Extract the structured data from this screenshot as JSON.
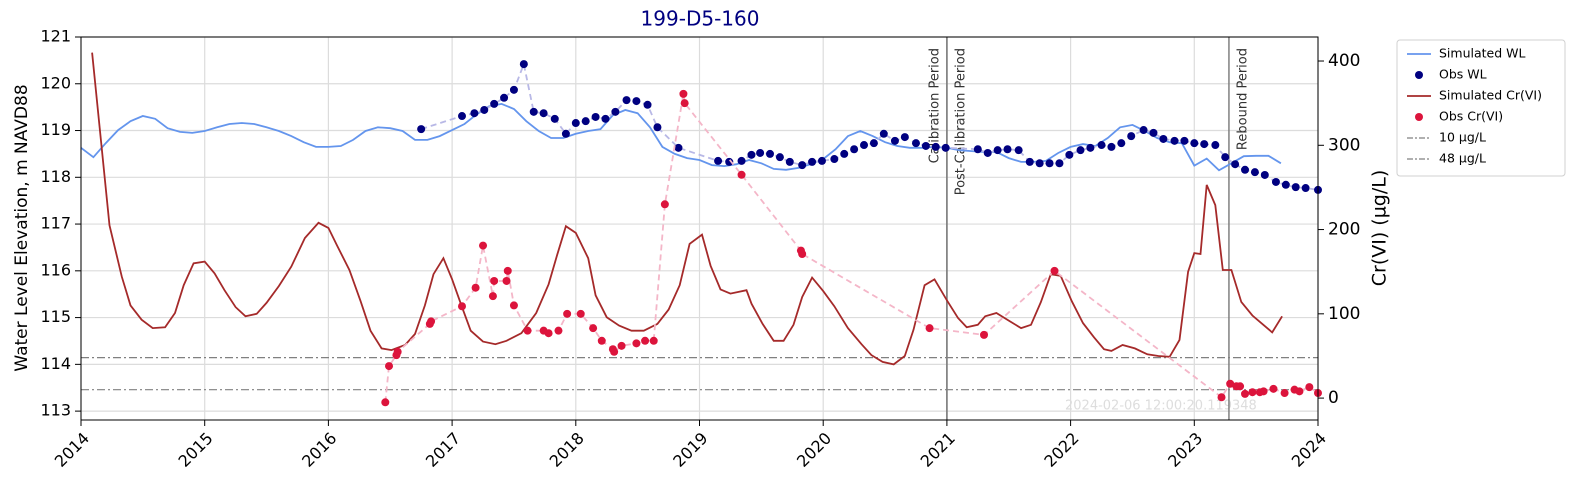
{
  "chart_data": {
    "type": "line",
    "title": "199-D5-160",
    "ylabel": "Water Level Elevation, m NAVD88",
    "y2label": "Cr(VI) (µg/L)",
    "watermark": "2024-02-06 12:00:20.119348",
    "xlim": [
      2014,
      2024
    ],
    "xticks": [
      2014,
      2015,
      2016,
      2017,
      2018,
      2019,
      2020,
      2021,
      2022,
      2023,
      2024
    ],
    "ylim": [
      112.81,
      121
    ],
    "yticks": [
      113,
      114,
      115,
      116,
      117,
      118,
      119,
      120,
      121
    ],
    "y2lim": [
      -26,
      428.5
    ],
    "y2ticks": [
      0,
      100,
      200,
      300,
      400
    ],
    "grid": true,
    "legend": "outside right",
    "series": [
      {
        "name": "Simulated WL",
        "kind": "line",
        "axis": "y",
        "color": "#6495ed",
        "x": [
          2014.0,
          2014.1,
          2014.2,
          2014.3,
          2014.4,
          2014.5,
          2014.6,
          2014.7,
          2014.8,
          2014.9,
          2015.0,
          2015.1,
          2015.2,
          2015.3,
          2015.4,
          2015.5,
          2015.6,
          2015.7,
          2015.8,
          2015.9,
          2016.0,
          2016.1,
          2016.2,
          2016.3,
          2016.4,
          2016.5,
          2016.6,
          2016.7,
          2016.8,
          2016.9,
          2017.0,
          2017.1,
          2017.2,
          2017.3,
          2017.4,
          2017.5,
          2017.6,
          2017.7,
          2017.8,
          2017.9,
          2018.0,
          2018.1,
          2018.2,
          2018.3,
          2018.4,
          2018.5,
          2018.6,
          2018.7,
          2018.8,
          2018.9,
          2019.0,
          2019.1,
          2019.2,
          2019.3,
          2019.4,
          2019.5,
          2019.6,
          2019.7,
          2019.8,
          2019.9,
          2020.0,
          2020.1,
          2020.2,
          2020.3,
          2020.4,
          2020.5,
          2020.6,
          2020.7,
          2020.8,
          2020.9,
          2021.0,
          2021.1,
          2021.2,
          2021.3,
          2021.4,
          2021.5,
          2021.6,
          2021.7,
          2021.8,
          2021.9,
          2022.0,
          2022.1,
          2022.2,
          2022.3,
          2022.4,
          2022.5,
          2022.6,
          2022.7,
          2022.8,
          2022.9,
          2023.0,
          2023.1,
          2023.2,
          2023.3,
          2023.4,
          2023.5,
          2023.6,
          2023.7
        ],
        "values": [
          118.63,
          118.43,
          118.73,
          119.01,
          119.2,
          119.31,
          119.25,
          119.05,
          118.97,
          118.95,
          118.99,
          119.07,
          119.14,
          119.16,
          119.14,
          119.07,
          118.99,
          118.88,
          118.75,
          118.65,
          118.65,
          118.67,
          118.8,
          118.99,
          119.07,
          119.05,
          118.99,
          118.8,
          118.8,
          118.88,
          119.01,
          119.14,
          119.35,
          119.52,
          119.57,
          119.46,
          119.2,
          118.99,
          118.84,
          118.84,
          118.93,
          118.99,
          119.03,
          119.33,
          119.44,
          119.37,
          119.07,
          118.65,
          118.5,
          118.41,
          118.37,
          118.26,
          118.24,
          118.28,
          118.37,
          118.3,
          118.18,
          118.16,
          118.2,
          118.28,
          118.39,
          118.6,
          118.88,
          118.99,
          118.88,
          118.75,
          118.67,
          118.63,
          118.63,
          118.65,
          118.63,
          118.58,
          118.56,
          118.54,
          118.54,
          118.41,
          118.33,
          118.33,
          118.35,
          118.52,
          118.65,
          118.71,
          118.67,
          118.84,
          119.07,
          119.12,
          118.99,
          118.84,
          118.75,
          118.73,
          118.25,
          118.4,
          118.15,
          118.3,
          118.45,
          118.46,
          118.46,
          118.3
        ]
      },
      {
        "name": "Obs WL",
        "kind": "scatter",
        "axis": "y",
        "color": "#000080",
        "connector_color": "#b8b8e6",
        "x": [
          2016.75,
          2017.08,
          2017.18,
          2017.26,
          2017.34,
          2017.42,
          2017.5,
          2017.58,
          2017.66,
          2017.74,
          2017.83,
          2017.92,
          2018.0,
          2018.08,
          2018.16,
          2018.24,
          2018.32,
          2018.41,
          2018.49,
          2018.58,
          2018.66,
          2018.83,
          2019.15,
          2019.24,
          2019.34,
          2019.42,
          2019.49,
          2019.57,
          2019.65,
          2019.73,
          2019.83,
          2019.91,
          2019.99,
          2020.09,
          2020.17,
          2020.25,
          2020.33,
          2020.41,
          2020.49,
          2020.58,
          2020.66,
          2020.75,
          2020.83,
          2020.91,
          2020.99,
          2021.25,
          2021.33,
          2021.41,
          2021.49,
          2021.58,
          2021.67,
          2021.75,
          2021.83,
          2021.91,
          2021.99,
          2022.08,
          2022.16,
          2022.25,
          2022.33,
          2022.41,
          2022.49,
          2022.59,
          2022.67,
          2022.75,
          2022.84,
          2022.92,
          2023.0,
          2023.08,
          2023.17,
          2023.25,
          2023.33,
          2023.41,
          2023.49,
          2023.57,
          2023.66,
          2023.74,
          2023.82,
          2023.9,
          2024.0
        ],
        "values": [
          119.03,
          119.31,
          119.37,
          119.44,
          119.57,
          119.7,
          119.87,
          120.42,
          119.4,
          119.37,
          119.25,
          118.93,
          119.16,
          119.2,
          119.29,
          119.25,
          119.4,
          119.65,
          119.63,
          119.55,
          119.07,
          118.63,
          118.35,
          118.33,
          118.35,
          118.48,
          118.52,
          118.5,
          118.43,
          118.33,
          118.26,
          118.33,
          118.35,
          118.39,
          118.5,
          118.6,
          118.69,
          118.73,
          118.93,
          118.78,
          118.86,
          118.73,
          118.67,
          118.65,
          118.63,
          118.6,
          118.52,
          118.58,
          118.6,
          118.58,
          118.33,
          118.3,
          118.3,
          118.3,
          118.48,
          118.58,
          118.63,
          118.69,
          118.65,
          118.73,
          118.88,
          119.01,
          118.95,
          118.82,
          118.78,
          118.78,
          118.73,
          118.71,
          118.69,
          118.43,
          118.28,
          118.16,
          118.11,
          118.05,
          117.9,
          117.84,
          117.79,
          117.77,
          117.73
        ]
      },
      {
        "name": "Simulated Cr(VI)",
        "kind": "line",
        "axis": "y2",
        "color": "#a52a2a",
        "x": [
          2014.09,
          2014.23,
          2014.33,
          2014.4,
          2014.49,
          2014.58,
          2014.68,
          2014.76,
          2014.83,
          2014.91,
          2015.0,
          2015.08,
          2015.16,
          2015.25,
          2015.33,
          2015.42,
          2015.5,
          2015.6,
          2015.7,
          2015.81,
          2015.92,
          2016.0,
          2016.07,
          2016.17,
          2016.26,
          2016.34,
          2016.43,
          2016.51,
          2016.62,
          2016.7,
          2016.78,
          2016.85,
          2016.93,
          2017.0,
          2017.08,
          2017.15,
          2017.25,
          2017.35,
          2017.44,
          2017.56,
          2017.68,
          2017.78,
          2017.85,
          2017.92,
          2018.0,
          2018.1,
          2018.16,
          2018.25,
          2018.35,
          2018.45,
          2018.55,
          2018.66,
          2018.75,
          2018.84,
          2018.92,
          2019.02,
          2019.09,
          2019.17,
          2019.25,
          2019.38,
          2019.42,
          2019.51,
          2019.6,
          2019.68,
          2019.76,
          2019.83,
          2019.91,
          2020.0,
          2020.09,
          2020.2,
          2020.31,
          2020.39,
          2020.48,
          2020.57,
          2020.66,
          2020.73,
          2020.82,
          2020.9,
          2021.0,
          2021.09,
          2021.16,
          2021.25,
          2021.31,
          2021.4,
          2021.51,
          2021.6,
          2021.68,
          2021.76,
          2021.84,
          2021.92,
          2022.01,
          2022.1,
          2022.19,
          2022.27,
          2022.33,
          2022.42,
          2022.52,
          2022.62,
          2022.71,
          2022.8,
          2022.88,
          2022.95,
          2023.0,
          2023.05,
          2023.1,
          2023.17,
          2023.23,
          2023.3,
          2023.38,
          2023.47,
          2023.55,
          2023.63,
          2023.71
        ],
        "values": [
          410,
          205,
          144,
          110,
          93,
          83,
          84,
          101,
          134,
          160,
          162,
          148,
          128,
          108,
          97,
          100,
          113,
          133,
          156,
          190,
          208,
          202,
          181,
          152,
          115,
          80,
          59,
          57,
          63,
          76,
          110,
          147,
          166,
          141,
          108,
          80,
          67,
          64,
          68,
          77,
          101,
          135,
          170,
          204,
          196,
          166,
          122,
          96,
          86,
          80,
          80,
          88,
          105,
          134,
          183,
          194,
          157,
          129,
          124,
          128,
          112,
          88,
          68,
          68,
          87,
          120,
          143,
          127,
          109,
          83,
          64,
          51,
          43,
          40,
          50,
          81,
          134,
          141,
          116,
          95,
          84,
          87,
          97,
          101,
          91,
          83,
          87,
          114,
          147,
          145,
          115,
          89,
          72,
          58,
          56,
          63,
          59,
          52,
          50,
          49,
          69,
          150,
          172,
          171,
          253,
          229,
          152,
          152,
          114,
          98,
          88,
          78,
          97
        ]
      },
      {
        "name": "Obs Cr(VI)",
        "kind": "scatter",
        "axis": "y2",
        "color": "#dc143c",
        "connector_color": "#f4b6c8",
        "x": [
          2016.46,
          2016.49,
          2016.55,
          2016.56,
          2016.82,
          2016.83,
          2017.08,
          2017.19,
          2017.25,
          2017.33,
          2017.34,
          2017.44,
          2017.45,
          2017.5,
          2017.61,
          2017.74,
          2017.78,
          2017.86,
          2017.93,
          2018.04,
          2018.14,
          2018.21,
          2018.3,
          2018.31,
          2018.37,
          2018.49,
          2018.56,
          2018.63,
          2018.72,
          2018.87,
          2018.88,
          2019.34,
          2019.82,
          2019.83,
          2020.86,
          2021.3,
          2021.87,
          2023.22,
          2023.29,
          2023.34,
          2023.37,
          2023.41,
          2023.47,
          2023.53,
          2023.56,
          2023.64,
          2023.73,
          2023.81,
          2023.85,
          2023.93,
          2024.0
        ],
        "values": [
          -5,
          38,
          51,
          55,
          88,
          91,
          109,
          131,
          181,
          121,
          139,
          139,
          151,
          110,
          80,
          80,
          77,
          80,
          100,
          100,
          83,
          68,
          58,
          55,
          62,
          65,
          68,
          68,
          230,
          361,
          350,
          265,
          175,
          171,
          83,
          75,
          151,
          1,
          17,
          14,
          14,
          5,
          7,
          7,
          8,
          11,
          6,
          10,
          8,
          13,
          6
        ]
      }
    ],
    "hlines": [
      {
        "name": "10 µg/L",
        "value": 10,
        "axis": "y2",
        "color": "#808080"
      },
      {
        "name": "48 µg/L",
        "value": 48,
        "axis": "y2",
        "color": "#808080"
      }
    ],
    "vlines": [
      {
        "x": 2021.0,
        "label": "Calibration Period",
        "side": "left",
        "color": "#808080"
      },
      {
        "x": 2021.0,
        "label": "Post-Calibration Period",
        "side": "right",
        "color": "#808080"
      },
      {
        "x": 2023.28,
        "label": "Rebound Period",
        "side": "right",
        "color": "#808080"
      }
    ]
  }
}
